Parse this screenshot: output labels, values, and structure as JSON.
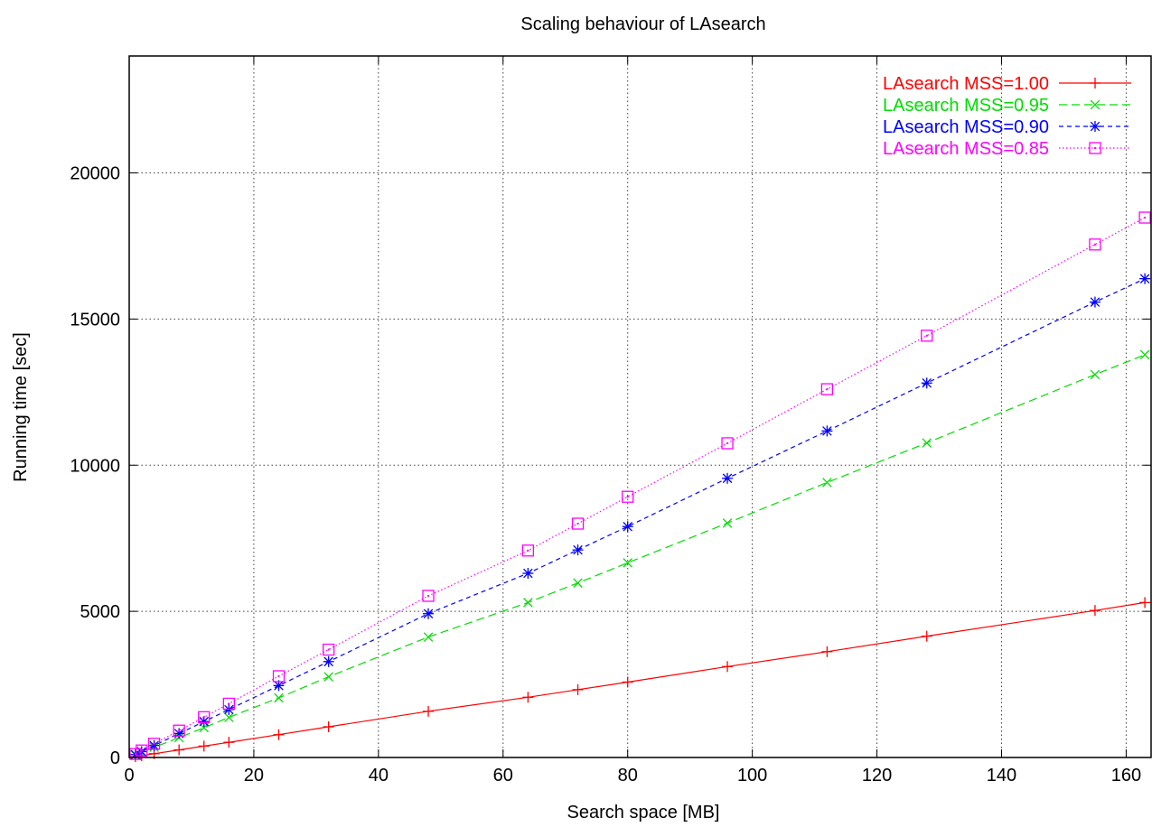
{
  "chart_data": {
    "type": "line",
    "title": "Scaling behaviour of LAsearch",
    "xlabel": "Search space [MB]",
    "ylabel": "Running time [sec]",
    "xlim": [
      0,
      164
    ],
    "ylim": [
      0,
      24000
    ],
    "xticks": [
      0,
      20,
      40,
      60,
      80,
      100,
      120,
      140,
      160
    ],
    "yticks": [
      0,
      5000,
      10000,
      15000,
      20000
    ],
    "grid": true,
    "legend_position": "top-right",
    "x": [
      1,
      2,
      4,
      8,
      12,
      16,
      24,
      32,
      48,
      64,
      72,
      80,
      96,
      112,
      128,
      155,
      163
    ],
    "series": [
      {
        "name": "LAsearch MSS=1.00",
        "color": "#ff0000",
        "marker": "plus",
        "line": "solid",
        "values": [
          30,
          60,
          130,
          260,
          390,
          520,
          780,
          1050,
          1580,
          2060,
          2320,
          2580,
          3110,
          3620,
          4150,
          5030,
          5300
        ]
      },
      {
        "name": "LAsearch MSS=0.95",
        "color": "#00dd00",
        "marker": "cross",
        "line": "dashed",
        "values": [
          80,
          170,
          350,
          680,
          1020,
          1370,
          2040,
          2760,
          4120,
          5300,
          5970,
          6660,
          8020,
          9410,
          10760,
          13100,
          13780
        ]
      },
      {
        "name": "LAsearch MSS=0.90",
        "color": "#0000ff",
        "marker": "star",
        "line": "dashed-short",
        "values": [
          100,
          200,
          410,
          820,
          1230,
          1640,
          2460,
          3280,
          4920,
          6300,
          7100,
          7900,
          9550,
          11170,
          12810,
          15580,
          16380
        ]
      },
      {
        "name": "LAsearch MSS=0.85",
        "color": "#ff00ff",
        "marker": "square",
        "line": "dotted",
        "values": [
          120,
          240,
          470,
          920,
          1380,
          1840,
          2780,
          3690,
          5530,
          7080,
          8000,
          8920,
          10750,
          12600,
          14430,
          17550,
          18470
        ]
      }
    ]
  }
}
